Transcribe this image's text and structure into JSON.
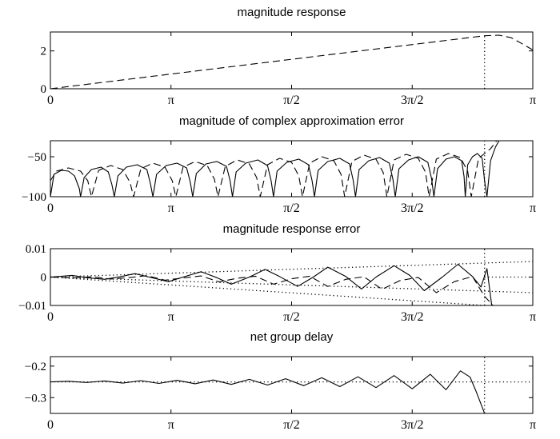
{
  "chart_data": [
    {
      "type": "line",
      "title": "magnitude response",
      "xlim": [
        0,
        4
      ],
      "ylim": [
        0,
        3
      ],
      "x_ticks": [
        0,
        1,
        2,
        3,
        4
      ],
      "x_tick_labels": [
        "0",
        "π",
        "π/2",
        "3π/2",
        "π"
      ],
      "y_ticks": [
        0,
        2
      ],
      "y_tick_labels": [
        "0",
        "2"
      ],
      "series": [
        {
          "style": "dashed",
          "x": [
            0,
            3.6,
            3.72,
            3.82,
            3.92,
            4.0
          ],
          "y": [
            0,
            2.8,
            2.83,
            2.7,
            2.35,
            2.05
          ]
        },
        {
          "style": "dotted",
          "x": [
            3.6,
            3.6
          ],
          "y": [
            0,
            2.8
          ]
        }
      ]
    },
    {
      "type": "line",
      "title": "magnitude of complex approximation error",
      "xlim": [
        0,
        4
      ],
      "ylim": [
        -100,
        -30
      ],
      "x_ticks": [
        0,
        1,
        2,
        3,
        4
      ],
      "x_tick_labels": [
        "0",
        "π",
        "π/2",
        "3π/2",
        "π"
      ],
      "y_ticks": [
        -100,
        -50
      ],
      "y_tick_labels": [
        "−100",
        "−50"
      ],
      "series": [
        {
          "style": "solid",
          "x": [
            0,
            0.03,
            0.09,
            0.15,
            0.2,
            0.24,
            0.25,
            0.28,
            0.34,
            0.42,
            0.48,
            0.51,
            0.53,
            0.56,
            0.63,
            0.72,
            0.8,
            0.83,
            0.85,
            0.88,
            0.96,
            1.05,
            1.13,
            1.16,
            1.18,
            1.21,
            1.29,
            1.38,
            1.46,
            1.49,
            1.51,
            1.54,
            1.62,
            1.72,
            1.8,
            1.83,
            1.85,
            1.88,
            1.96,
            2.06,
            2.14,
            2.17,
            2.19,
            2.22,
            2.3,
            2.4,
            2.48,
            2.51,
            2.53,
            2.56,
            2.64,
            2.73,
            2.81,
            2.84,
            2.86,
            2.89,
            2.97,
            3.05,
            3.13,
            3.16,
            3.18,
            3.21,
            3.28,
            3.35,
            3.41,
            3.43,
            3.44,
            3.46,
            3.5,
            3.54,
            3.58,
            3.6,
            3.62,
            3.65,
            3.69,
            3.72
          ],
          "y": [
            -100,
            -72,
            -67,
            -68,
            -74,
            -90,
            -100,
            -76,
            -66,
            -63,
            -69,
            -85,
            -100,
            -74,
            -63,
            -60,
            -66,
            -84,
            -100,
            -72,
            -61,
            -58,
            -64,
            -82,
            -100,
            -71,
            -59,
            -56,
            -62,
            -80,
            -100,
            -69,
            -58,
            -54,
            -61,
            -80,
            -100,
            -68,
            -57,
            -53,
            -60,
            -80,
            -100,
            -67,
            -56,
            -52,
            -59,
            -79,
            -100,
            -66,
            -55,
            -51,
            -58,
            -78,
            -100,
            -65,
            -54,
            -50,
            -57,
            -77,
            -100,
            -65,
            -53,
            -50,
            -55,
            -75,
            -100,
            -60,
            -50,
            -46,
            -52,
            -80,
            -100,
            -55,
            -38,
            -30
          ]
        },
        {
          "style": "dashed",
          "x": [
            0,
            0.05,
            0.15,
            0.25,
            0.31,
            0.34,
            0.4,
            0.5,
            0.6,
            0.66,
            0.69,
            0.75,
            0.85,
            0.95,
            1.01,
            1.04,
            1.1,
            1.2,
            1.3,
            1.36,
            1.39,
            1.45,
            1.55,
            1.65,
            1.71,
            1.74,
            1.8,
            1.9,
            2.0,
            2.06,
            2.09,
            2.15,
            2.25,
            2.35,
            2.41,
            2.44,
            2.5,
            2.6,
            2.7,
            2.76,
            2.79,
            2.85,
            2.95,
            3.05,
            3.11,
            3.14,
            3.2,
            3.3,
            3.4,
            3.46,
            3.49,
            3.55,
            3.6,
            3.65,
            3.7
          ],
          "y": [
            -80,
            -68,
            -64,
            -68,
            -80,
            -100,
            -67,
            -61,
            -66,
            -82,
            -100,
            -65,
            -58,
            -63,
            -80,
            -100,
            -63,
            -56,
            -61,
            -78,
            -100,
            -62,
            -54,
            -59,
            -76,
            -100,
            -60,
            -52,
            -57,
            -74,
            -100,
            -58,
            -50,
            -55,
            -72,
            -100,
            -56,
            -48,
            -53,
            -70,
            -100,
            -54,
            -47,
            -52,
            -69,
            -100,
            -53,
            -46,
            -51,
            -68,
            -100,
            -52,
            -46,
            -40,
            -30
          ]
        },
        {
          "style": "dotted",
          "x": [
            3.6,
            3.6
          ],
          "y": [
            -100,
            -30
          ]
        }
      ]
    },
    {
      "type": "line",
      "title": "magnitude response error",
      "xlim": [
        0,
        4
      ],
      "ylim": [
        -0.01,
        0.01
      ],
      "x_ticks": [
        0,
        1,
        2,
        3,
        4
      ],
      "x_tick_labels": [
        "0",
        "π",
        "π/2",
        "3π/2",
        "π"
      ],
      "y_ticks": [
        -0.01,
        0,
        0.01
      ],
      "y_tick_labels": [
        "−0.01",
        "0",
        "0.01"
      ],
      "series": [
        {
          "style": "solid",
          "x": [
            0,
            0.18,
            0.3,
            0.45,
            0.58,
            0.7,
            0.85,
            0.98,
            1.1,
            1.25,
            1.38,
            1.5,
            1.65,
            1.78,
            1.9,
            2.05,
            2.18,
            2.3,
            2.45,
            2.58,
            2.7,
            2.85,
            2.98,
            3.1,
            3.25,
            3.38,
            3.5,
            3.57,
            3.62,
            3.66
          ],
          "y": [
            0,
            0.0006,
            -0.0002,
            -0.0008,
            0.0001,
            0.0012,
            -0.0003,
            -0.0016,
            0,
            0.0019,
            -0.0002,
            -0.0025,
            0,
            0.0027,
            0.0002,
            -0.0033,
            0,
            0.0035,
            0.0002,
            -0.0042,
            0,
            0.004,
            0.0006,
            -0.0048,
            0,
            0.0045,
            0.0002,
            -0.0035,
            0.003,
            -0.01
          ]
        },
        {
          "style": "dashed",
          "x": [
            0,
            0.2,
            0.35,
            0.5,
            0.65,
            0.8,
            0.95,
            1.1,
            1.25,
            1.4,
            1.55,
            1.7,
            1.85,
            2.0,
            2.15,
            2.3,
            2.45,
            2.6,
            2.75,
            2.9,
            3.05,
            3.2,
            3.35,
            3.5,
            3.6,
            3.67
          ],
          "y": [
            0,
            -0.0003,
            0.0001,
            -0.0007,
            -0.0002,
            0.0005,
            -0.0011,
            -0.0003,
            0.0004,
            -0.0017,
            -0.0004,
            0.0003,
            -0.0025,
            -0.0006,
            0.0003,
            -0.0033,
            -0.0008,
            0.0001,
            -0.0043,
            -0.0012,
            -0.0001,
            -0.0055,
            -0.0016,
            0.0002,
            -0.0068,
            -0.01
          ]
        },
        {
          "style": "dotted",
          "x": [
            0,
            4
          ],
          "y": [
            0,
            0.0055
          ]
        },
        {
          "style": "dotted",
          "x": [
            0,
            4
          ],
          "y": [
            0,
            -0.0055
          ]
        },
        {
          "style": "dotted",
          "x": [
            0,
            3.6
          ],
          "y": [
            0,
            -0.01
          ]
        },
        {
          "style": "dotted",
          "x": [
            3.6,
            3.6
          ],
          "y": [
            -0.01,
            0.01
          ]
        },
        {
          "style": "dotted",
          "x": [
            3.6,
            4
          ],
          "y": [
            0,
            0
          ]
        }
      ]
    },
    {
      "type": "line",
      "title": "net group delay",
      "xlim": [
        0,
        4
      ],
      "ylim": [
        -0.35,
        -0.17
      ],
      "x_ticks": [
        0,
        1,
        2,
        3,
        4
      ],
      "x_tick_labels": [
        "0",
        "π",
        "π/2",
        "3π/2",
        "π"
      ],
      "y_ticks": [
        -0.3,
        -0.2
      ],
      "y_tick_labels": [
        "−0.3",
        "−0.2"
      ],
      "series": [
        {
          "style": "solid",
          "x": [
            0,
            0.15,
            0.3,
            0.45,
            0.6,
            0.75,
            0.9,
            1.05,
            1.2,
            1.35,
            1.5,
            1.65,
            1.8,
            1.95,
            2.1,
            2.25,
            2.4,
            2.55,
            2.7,
            2.85,
            3.0,
            3.15,
            3.28,
            3.4,
            3.48,
            3.53,
            3.57,
            3.6
          ],
          "y": [
            -0.25,
            -0.248,
            -0.252,
            -0.247,
            -0.254,
            -0.246,
            -0.255,
            -0.245,
            -0.256,
            -0.244,
            -0.258,
            -0.242,
            -0.26,
            -0.24,
            -0.262,
            -0.237,
            -0.265,
            -0.234,
            -0.268,
            -0.23,
            -0.272,
            -0.226,
            -0.275,
            -0.215,
            -0.235,
            -0.28,
            -0.32,
            -0.35
          ]
        },
        {
          "style": "dotted",
          "x": [
            0,
            4
          ],
          "y": [
            -0.25,
            -0.25
          ]
        },
        {
          "style": "dotted",
          "x": [
            3.6,
            3.6
          ],
          "y": [
            -0.35,
            -0.17
          ]
        }
      ]
    }
  ]
}
